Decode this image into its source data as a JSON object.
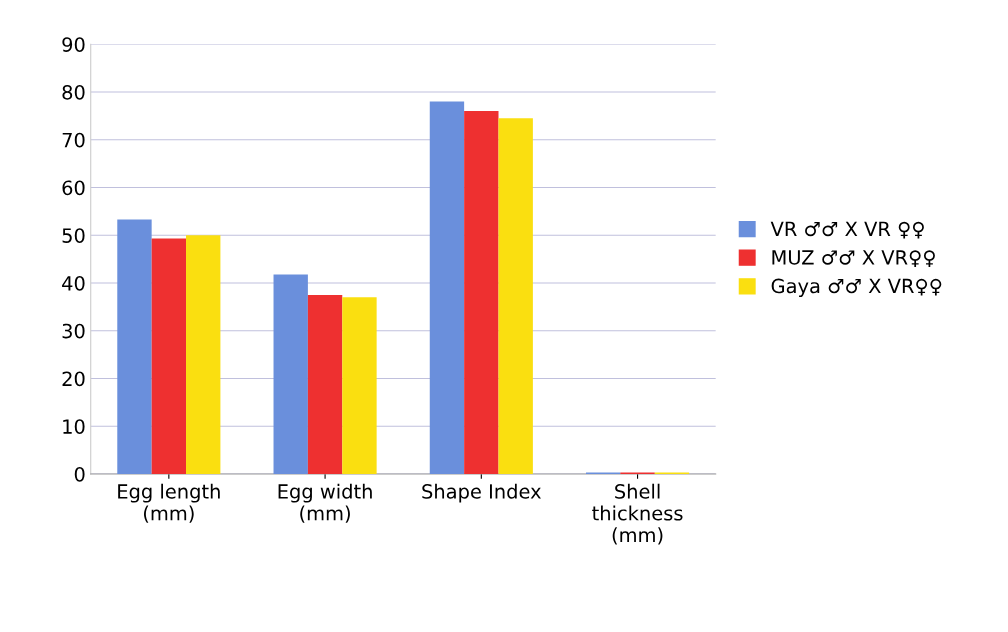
{
  "chart_data": {
    "type": "bar",
    "categories": [
      "Egg length\n(mm)",
      "Egg width\n(mm)",
      "Shape Index",
      "Shell\nthickness\n(mm)"
    ],
    "series": [
      {
        "name": "VR ♂♂ X VR ♀♀",
        "color": "#6a8fdc",
        "values": [
          53.3,
          41.8,
          78,
          0.3
        ]
      },
      {
        "name": "MUZ ♂♂ X VR♀♀",
        "color": "#ee3030",
        "values": [
          49.3,
          37.5,
          76,
          0.3
        ]
      },
      {
        "name": "Gaya ♂♂ X VR♀♀",
        "color": "#fadf10",
        "values": [
          50,
          37,
          74.5,
          0.3
        ]
      }
    ],
    "ylim": [
      0,
      90
    ],
    "yticks": [
      0,
      10,
      20,
      30,
      40,
      50,
      60,
      70,
      80,
      90
    ],
    "grid": "y",
    "legend": "right"
  }
}
